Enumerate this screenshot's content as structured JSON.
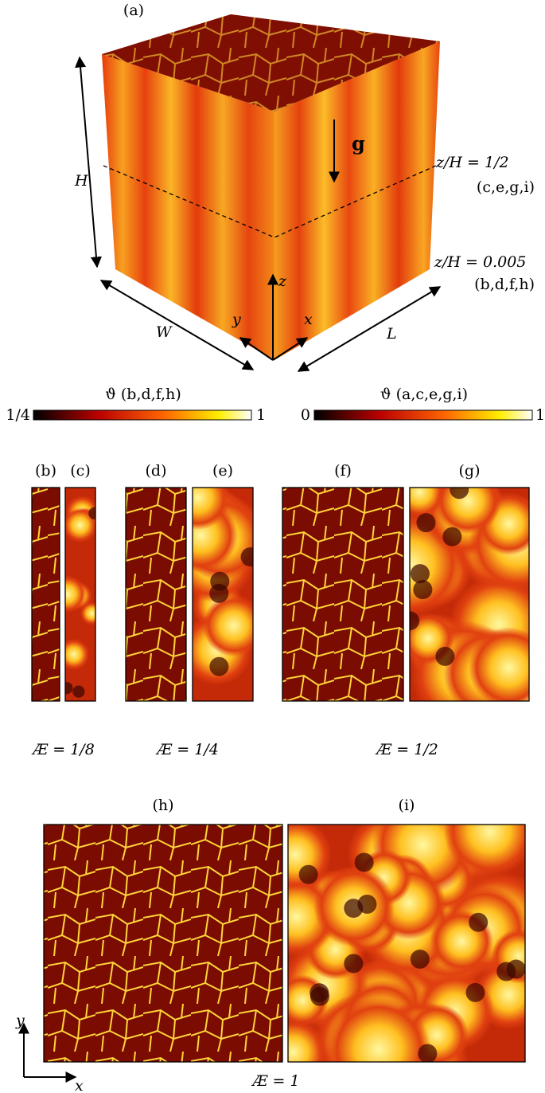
{
  "panel_a": {
    "label": "(a)",
    "gravity": "g",
    "height": "H",
    "width": "W",
    "length": "L",
    "axis_x": "x",
    "axis_y": "y",
    "axis_z": "z",
    "plane_mid": {
      "text": "z/H = 1/2",
      "panels": "(c,e,g,i)"
    },
    "plane_bottom": {
      "text": "z/H = 0.005",
      "panels": "(b,d,f,h)"
    }
  },
  "colorbars": [
    {
      "label": "ϑ (b,d,f,h)",
      "min": "1/4",
      "max": "1"
    },
    {
      "label": "ϑ (a,c,e,g,i)",
      "min": "0",
      "max": "1"
    }
  ],
  "panels": [
    "(b)",
    "(c)",
    "(d)",
    "(e)",
    "(f)",
    "(g)",
    "(h)",
    "(i)"
  ],
  "aspect_ratios": [
    "Æ = 1/8",
    "Æ = 1/4",
    "Æ = 1/2",
    "Æ = 1"
  ],
  "bottom_axes": {
    "x": "x",
    "y": "y"
  }
}
